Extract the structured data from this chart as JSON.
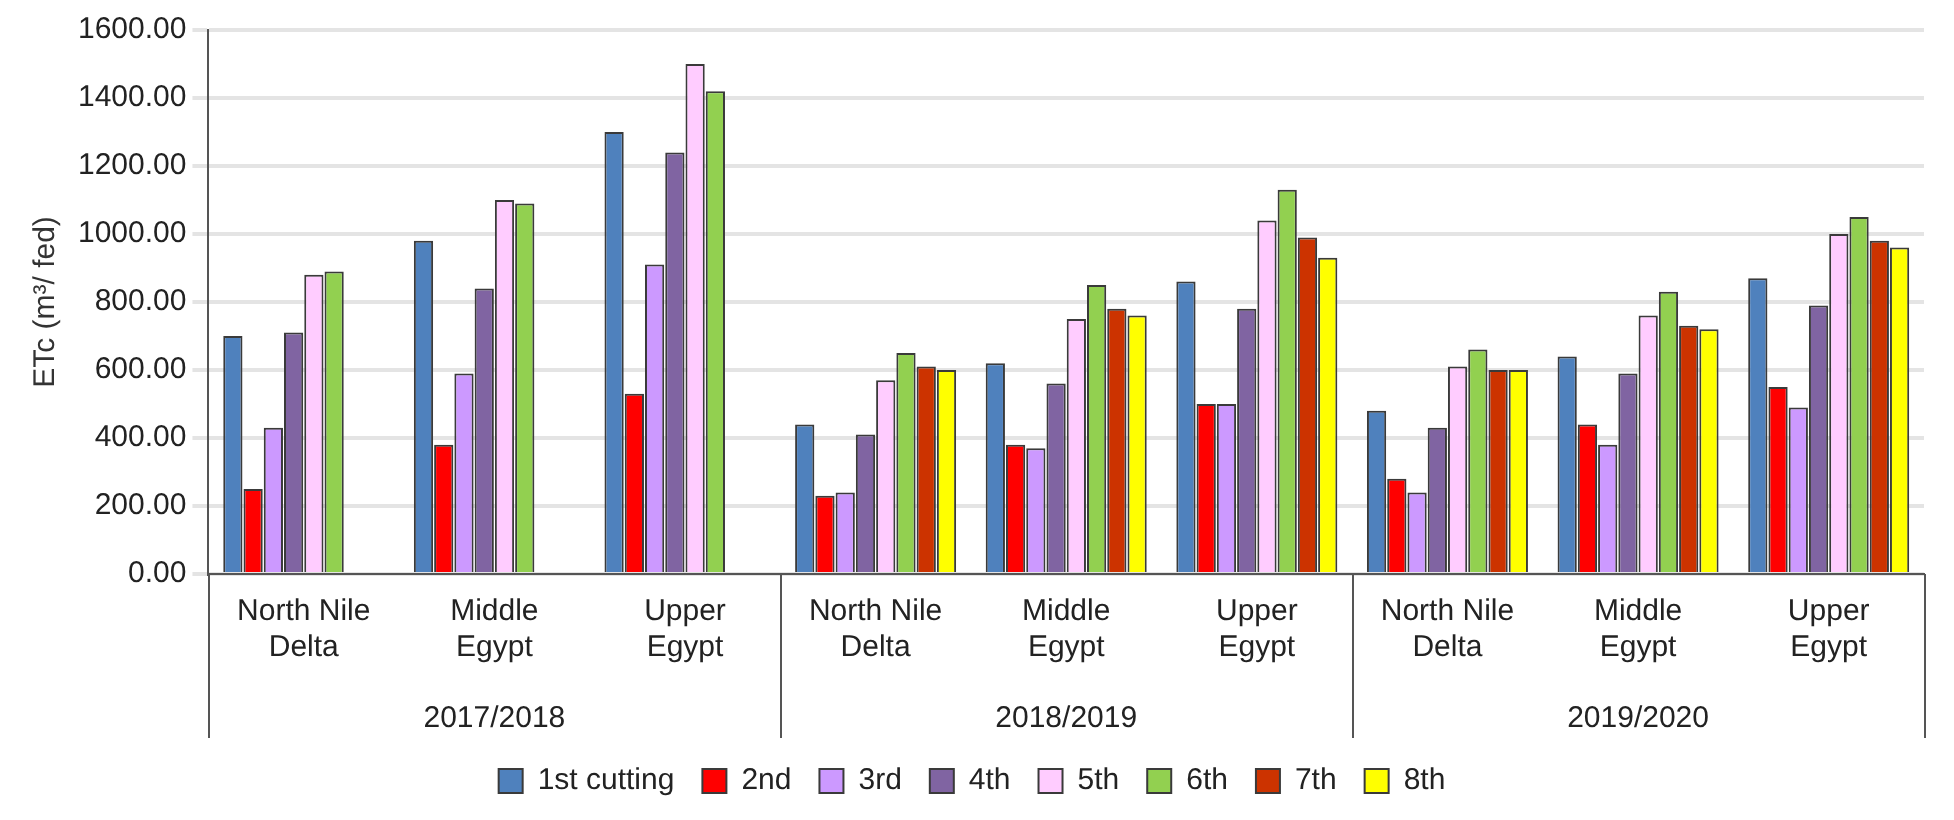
{
  "chart_data": {
    "type": "bar",
    "ylabel": "ETc (m³/ fed)",
    "categories": [
      "North Nile Delta",
      "Middle Egypt",
      "Upper Egypt",
      "North Nile Delta",
      "Middle Egypt",
      "Upper Egypt",
      "North Nile Delta",
      "Middle Egypt",
      "Upper Egypt"
    ],
    "annotations": [
      "2017/2018",
      "2018/2019",
      "2019/2020"
    ],
    "series": [
      {
        "name": "1st cutting",
        "color": "#4f81bd",
        "values": [
          700,
          980,
          1300,
          440,
          620,
          860,
          480,
          640,
          870
        ]
      },
      {
        "name": "2nd",
        "color": "#ff0000",
        "values": [
          250,
          380,
          530,
          230,
          380,
          500,
          280,
          440,
          550
        ]
      },
      {
        "name": "3rd",
        "color": "#cc99ff",
        "values": [
          430,
          590,
          910,
          240,
          370,
          500,
          240,
          380,
          490
        ]
      },
      {
        "name": "4th",
        "color": "#8064a2",
        "values": [
          710,
          840,
          1240,
          410,
          560,
          780,
          430,
          590,
          790
        ]
      },
      {
        "name": "5th",
        "color": "#ffccff",
        "values": [
          880,
          1100,
          1500,
          570,
          750,
          1040,
          610,
          760,
          1000
        ]
      },
      {
        "name": "6th",
        "color": "#92d050",
        "values": [
          890,
          1090,
          1420,
          650,
          850,
          1130,
          660,
          830,
          1050
        ]
      },
      {
        "name": "7th",
        "color": "#cc3300",
        "values": [
          null,
          null,
          null,
          610,
          780,
          990,
          600,
          730,
          980
        ]
      },
      {
        "name": "8th",
        "color": "#ffff00",
        "values": [
          null,
          null,
          null,
          600,
          760,
          930,
          600,
          720,
          960
        ]
      }
    ],
    "ylim": [
      0,
      1600
    ],
    "yticks": [
      {
        "value": 0,
        "label": "0.00"
      },
      {
        "value": 200,
        "label": "200.00"
      },
      {
        "value": 400,
        "label": "400.00"
      },
      {
        "value": 600,
        "label": "600.00"
      },
      {
        "value": 800,
        "label": "800.00"
      },
      {
        "value": 1000,
        "label": "1000.00"
      },
      {
        "value": 1200,
        "label": "1200.00"
      },
      {
        "value": 1400,
        "label": "1400.00"
      },
      {
        "value": 1600,
        "label": "1600.00"
      }
    ],
    "grid": "y",
    "legend": "bottom"
  }
}
